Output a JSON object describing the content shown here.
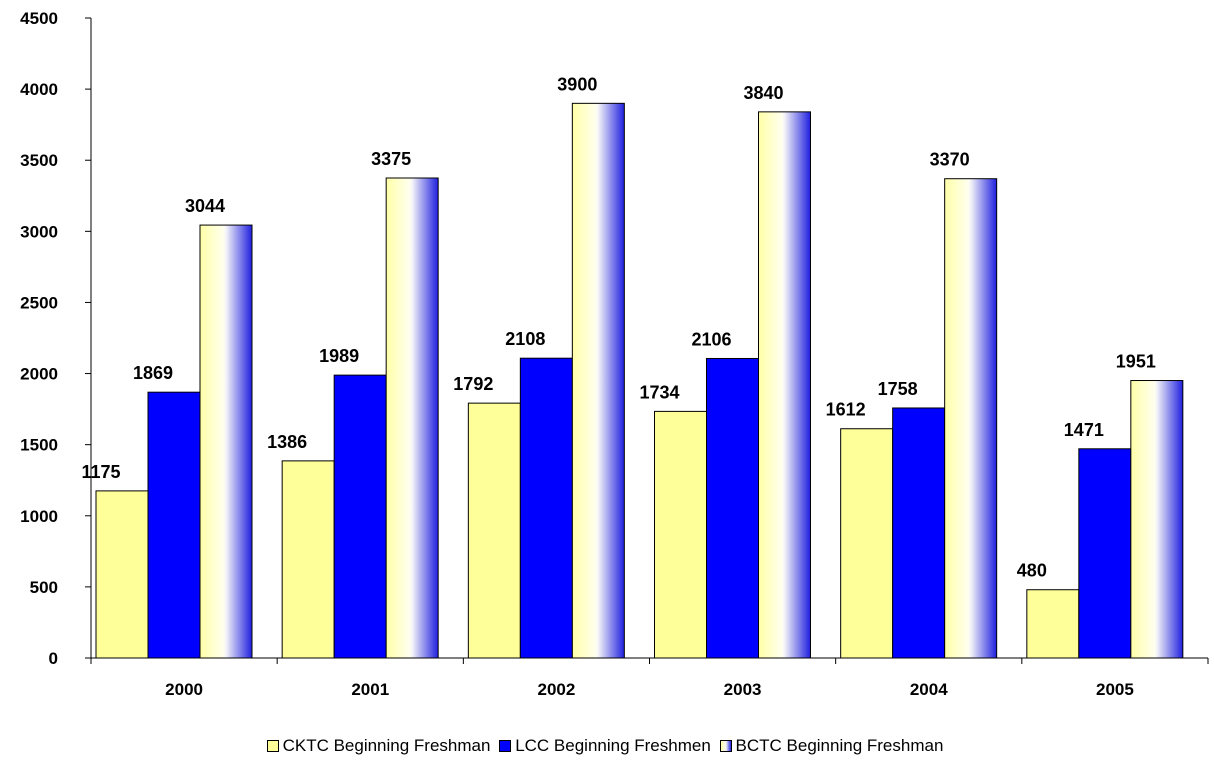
{
  "chart_data": {
    "type": "bar",
    "categories": [
      "2000",
      "2001",
      "2002",
      "2003",
      "2004",
      "2005"
    ],
    "series": [
      {
        "name": "CKTC Beginning Freshman",
        "values": [
          1175,
          1386,
          1792,
          1734,
          1612,
          480
        ],
        "color": "#FFFF99"
      },
      {
        "name": "LCC Beginning Freshmen",
        "values": [
          1869,
          1989,
          2108,
          2106,
          1758,
          1471
        ],
        "color": "#0000FF"
      },
      {
        "name": "BCTC Beginning Freshman",
        "values": [
          3044,
          3375,
          3900,
          3840,
          3370,
          1951
        ],
        "color": "gradient-yellow-blue"
      }
    ],
    "y_ticks": [
      "0",
      "500",
      "1000",
      "1500",
      "2000",
      "2500",
      "3000",
      "3500",
      "4000",
      "4500"
    ],
    "ylim": [
      0,
      4500
    ],
    "grid": false,
    "legend_position": "bottom",
    "data_labels": true
  }
}
